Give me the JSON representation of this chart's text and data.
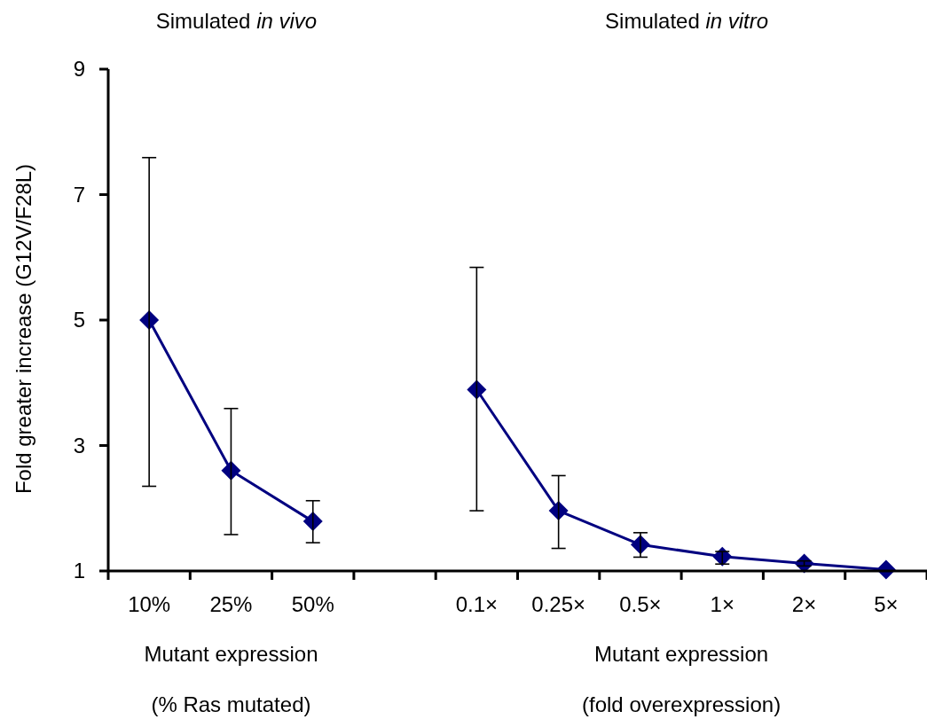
{
  "chart_data": {
    "type": "line",
    "ylabel": "Fold greater increase (G12V/F28L)",
    "categories": [
      "10%",
      "25%",
      "50%",
      null,
      "0.1×",
      "0.25×",
      "0.5×",
      "1×",
      "2×",
      "5×"
    ],
    "series": [
      {
        "color": "#000080",
        "values": [
          5.0,
          2.6,
          1.79,
          null,
          null,
          null,
          null,
          null,
          null,
          null
        ],
        "errors": [
          [
            2.35,
            7.59
          ],
          [
            1.58,
            3.59
          ],
          [
            1.45,
            2.12
          ],
          null,
          null,
          null,
          null,
          null,
          null,
          null
        ]
      },
      {
        "color": "#000080",
        "values": [
          null,
          null,
          null,
          null,
          3.89,
          1.96,
          1.42,
          1.23,
          1.12,
          1.02
        ],
        "errors": [
          null,
          null,
          null,
          null,
          [
            1.96,
            5.84
          ],
          [
            1.36,
            2.52
          ],
          [
            1.22,
            1.61
          ],
          [
            1.11,
            1.31
          ],
          [
            1.08,
            1.16
          ],
          null
        ]
      }
    ],
    "ylim": [
      1,
      9
    ],
    "yticks": [
      1,
      3,
      5,
      7,
      9
    ],
    "grid": false,
    "marker": "diamond",
    "line_style": "solid",
    "annotations": [
      "Simulated in vivo",
      "Simulated in vitro",
      "Mutant expression",
      "Mutant expression",
      "(% Ras mutated)",
      "(fold overexpression)"
    ]
  }
}
